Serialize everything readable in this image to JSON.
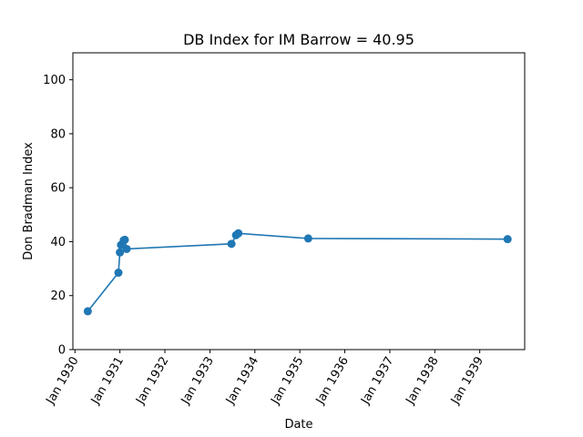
{
  "chart_data": {
    "type": "line",
    "title": "DB Index for IM Barrow = 40.95",
    "xlabel": "Date",
    "ylabel": "Don Bradman Index",
    "ylim": [
      0,
      110
    ],
    "yticks": [
      0,
      20,
      40,
      60,
      80,
      100
    ],
    "xlim": [
      "1929-12-15",
      "1940-01-01"
    ],
    "xticks": [
      {
        "date": "1930-01-01",
        "label": "Jan 1930"
      },
      {
        "date": "1931-01-01",
        "label": "Jan 1931"
      },
      {
        "date": "1932-01-01",
        "label": "Jan 1932"
      },
      {
        "date": "1933-01-01",
        "label": "Jan 1933"
      },
      {
        "date": "1934-01-01",
        "label": "Jan 1934"
      },
      {
        "date": "1935-01-01",
        "label": "Jan 1935"
      },
      {
        "date": "1936-01-01",
        "label": "Jan 1936"
      },
      {
        "date": "1937-01-01",
        "label": "Jan 1937"
      },
      {
        "date": "1938-01-01",
        "label": "Jan 1938"
      },
      {
        "date": "1939-01-01",
        "label": "Jan 1939"
      }
    ],
    "grid": false,
    "series": [
      {
        "color": "#1f77b4",
        "marker": "circle",
        "points": [
          {
            "x": "1930-04-15",
            "y": 14.2
          },
          {
            "x": "1930-12-20",
            "y": 28.5
          },
          {
            "x": "1931-01-01",
            "y": 36.0
          },
          {
            "x": "1931-01-10",
            "y": 38.8
          },
          {
            "x": "1931-02-01",
            "y": 40.5
          },
          {
            "x": "1931-02-10",
            "y": 40.7
          },
          {
            "x": "1931-02-25",
            "y": 37.3
          },
          {
            "x": "1933-06-25",
            "y": 39.2
          },
          {
            "x": "1933-08-01",
            "y": 42.4
          },
          {
            "x": "1933-08-20",
            "y": 43.1
          },
          {
            "x": "1935-03-10",
            "y": 41.2
          },
          {
            "x": "1939-08-15",
            "y": 40.95
          }
        ]
      }
    ]
  }
}
